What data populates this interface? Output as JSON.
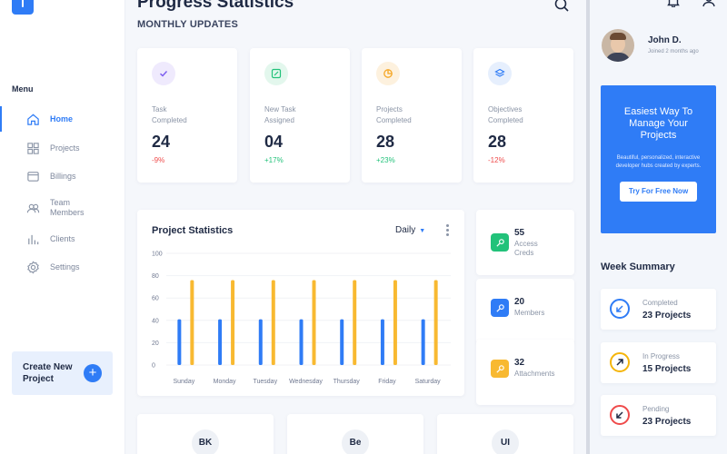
{
  "header": {
    "title": "Progress Statistics",
    "subtitle": "MONTHLY UPDATES"
  },
  "sidebar": {
    "menu_title": "Menu",
    "items": [
      {
        "label": "Home",
        "icon": "home-icon"
      },
      {
        "label": "Projects",
        "icon": "grid-icon"
      },
      {
        "label": "Billings",
        "icon": "wallet-icon"
      },
      {
        "label": "Team\nMembers",
        "icon": "users-icon"
      },
      {
        "label": "Clients",
        "icon": "bar-chart-icon"
      },
      {
        "label": "Settings",
        "icon": "gear-icon"
      }
    ],
    "active_index": 0,
    "create": {
      "label": "Create New Project",
      "icon": "plus-icon"
    }
  },
  "stats": [
    {
      "label": "Task\nCompleted",
      "value": "24",
      "change": "-9%",
      "icon": "check-icon",
      "color": "#7b5cf0",
      "bg": "#efeafd",
      "change_color": "#ef4b4b"
    },
    {
      "label": "New Task\nAssigned",
      "value": "04",
      "change": "+17%",
      "icon": "edit-icon",
      "color": "#22c27a",
      "bg": "#e3f7ed",
      "change_color": "#22c27a"
    },
    {
      "label": "Projects\nCompleted",
      "value": "28",
      "change": "+23%",
      "icon": "pie-icon",
      "color": "#f5a623",
      "bg": "#fdf1de",
      "change_color": "#22c27a"
    },
    {
      "label": "Objectives\nCompleted",
      "value": "28",
      "change": "-12%",
      "icon": "layers-icon",
      "color": "#2f7cf6",
      "bg": "#e6effd",
      "change_color": "#ef4b4b"
    }
  ],
  "chart": {
    "title": "Project Statistics",
    "period": "Daily",
    "period_icon": "caret-down-icon",
    "more_icon": "more-vertical-icon"
  },
  "chart_data": {
    "type": "bar",
    "categories": [
      "Sunday",
      "Monday",
      "Tuesday",
      "Wednesday",
      "Thursday",
      "Friday",
      "Saturday"
    ],
    "series": [
      {
        "values": [
          41,
          41,
          41,
          41,
          41,
          41,
          41
        ],
        "color": "#2f7cf6"
      },
      {
        "values": [
          76,
          76,
          76,
          76,
          76,
          76,
          76
        ],
        "color": "#f8b931"
      }
    ],
    "yticks": [
      0,
      20,
      40,
      60,
      80,
      100
    ],
    "ylim": [
      0,
      100
    ],
    "grid": true
  },
  "mini_stats": [
    {
      "value": "55",
      "label": "Access\nCreds",
      "icon": "key-icon",
      "color": "#22c27a"
    },
    {
      "value": "20",
      "label": "Members",
      "icon": "key-icon",
      "color": "#2f7cf6"
    },
    {
      "value": "32",
      "label": "Attachments",
      "icon": "key-icon",
      "color": "#f8b931"
    }
  ],
  "bottom_badges": [
    "BK",
    "Be",
    "UI"
  ],
  "user": {
    "name": "John D.",
    "joined": "Joined 2 months ago"
  },
  "topbar_icons": [
    "search-icon",
    "bell-icon",
    "user-icon"
  ],
  "promo": {
    "title": "Easiest Way To Manage Your Projects",
    "text": "Beautiful, personalized, interactive developer hubs created by experts.",
    "button": "Try For Free Now"
  },
  "week": {
    "title": "Week Summary",
    "items": [
      {
        "label": "Completed",
        "value": "23 Projects",
        "color": "#2f7cf6",
        "icon": "arrow-down-left-icon"
      },
      {
        "label": "In Progress",
        "value": "15 Projects",
        "color": "#f5b50a",
        "icon": "arrow-up-right-icon"
      },
      {
        "label": "Pending",
        "value": "23 Projects",
        "color": "#ef4b4b",
        "icon": "arrow-down-left-icon"
      }
    ]
  }
}
